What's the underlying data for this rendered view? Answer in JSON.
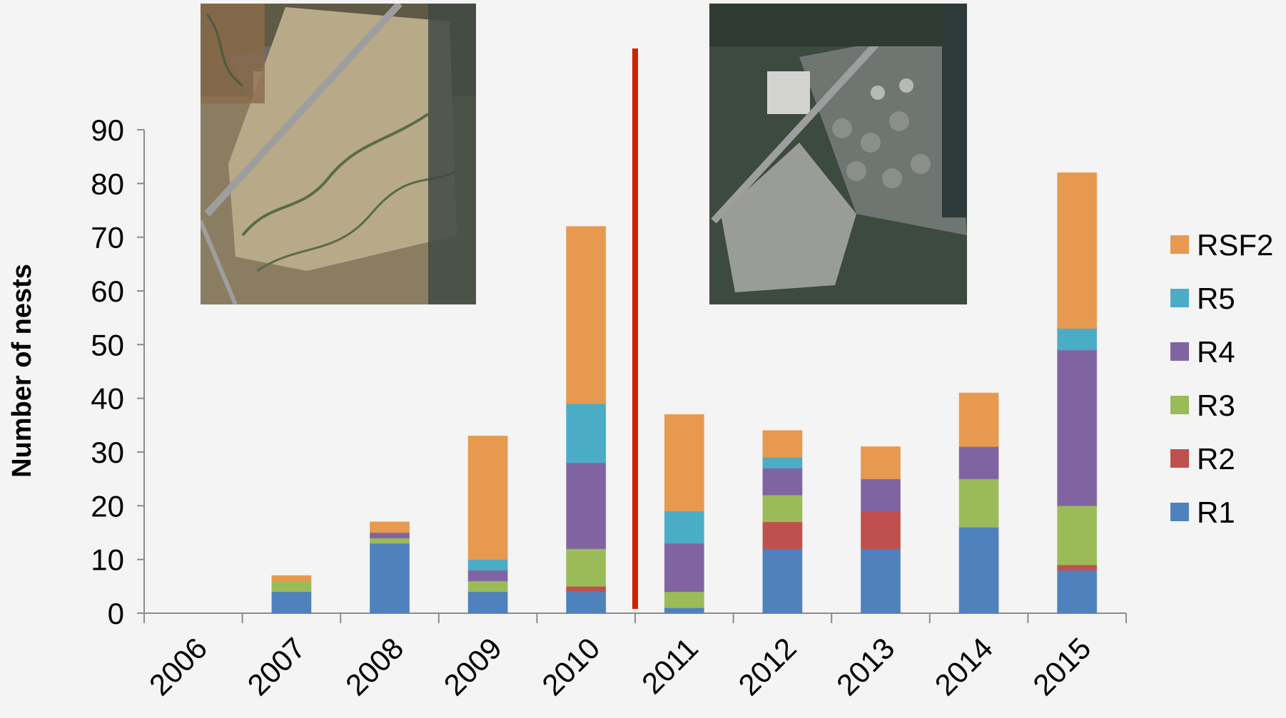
{
  "chart_data": {
    "type": "bar",
    "stacked": true,
    "ylabel": "Number of nests",
    "xlabel": "",
    "ylim": [
      0,
      90
    ],
    "yticks": [
      0,
      10,
      20,
      30,
      40,
      50,
      60,
      70,
      80,
      90
    ],
    "categories": [
      "2006",
      "2007",
      "2008",
      "2009",
      "2010",
      "2011",
      "2012",
      "2013",
      "2014",
      "2015"
    ],
    "series": [
      {
        "name": "R1",
        "color": "#4f81bd",
        "values": [
          0,
          4,
          13,
          4,
          4,
          1,
          12,
          12,
          16,
          8
        ]
      },
      {
        "name": "R2",
        "color": "#c0504d",
        "values": [
          0,
          0,
          0,
          0,
          1,
          0,
          5,
          7,
          0,
          1
        ]
      },
      {
        "name": "R3",
        "color": "#9bbb59",
        "values": [
          0,
          2,
          1,
          2,
          7,
          3,
          5,
          0,
          9,
          11
        ]
      },
      {
        "name": "R4",
        "color": "#8064a2",
        "values": [
          0,
          0,
          1,
          2,
          16,
          9,
          5,
          6,
          6,
          29
        ]
      },
      {
        "name": "R5",
        "color": "#4bacc6",
        "values": [
          0,
          0,
          0,
          2,
          11,
          6,
          2,
          0,
          0,
          4
        ]
      },
      {
        "name": "RSF2",
        "color": "#e6994f",
        "values": [
          0,
          1,
          2,
          23,
          33,
          18,
          5,
          6,
          10,
          29
        ]
      }
    ],
    "legend": {
      "placement": "right",
      "order": [
        "RSF2",
        "R5",
        "R4",
        "R3",
        "R2",
        "R1"
      ]
    },
    "grid": false,
    "annotations": {
      "divider": {
        "between": [
          "2010",
          "2011"
        ],
        "color": "#cc2200"
      },
      "inset_images": [
        "aerial-photo-before",
        "aerial-photo-after"
      ]
    }
  }
}
